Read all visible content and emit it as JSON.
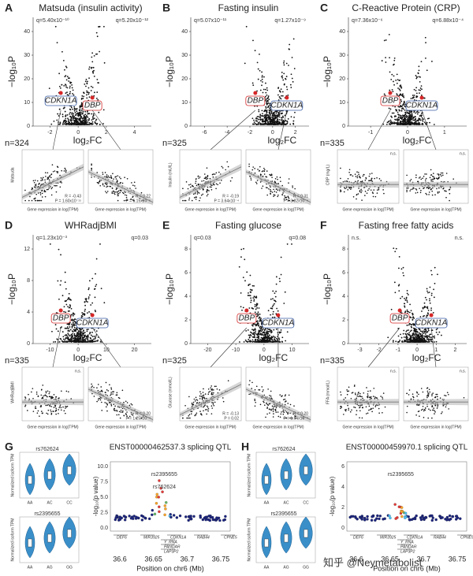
{
  "panels": [
    {
      "letter": "A",
      "title": "Matsuda (insulin activity)",
      "q_left": "q=5.40x10⁻¹⁰",
      "q_right": "q=5.20x10⁻¹²",
      "y_label": "−log₁₀P",
      "x_label": "log₂FC",
      "xticks": [
        -2,
        0,
        2,
        4
      ],
      "yticks": [
        0,
        10,
        20,
        30,
        40
      ],
      "genes": [
        "CDKN1A",
        "DBP"
      ],
      "n": "n=324",
      "trait_label": "Matsuda",
      "expr_label": "Gene expression in log(TPM)",
      "stats": [
        [
          "R = -0.43",
          "P = 1.60x10⁻¹⁵"
        ],
        [
          "R = 0.22",
          "P = 6.15x10⁻⁵"
        ]
      ]
    },
    {
      "letter": "B",
      "title": "Fasting insulin",
      "q_left": "q=5.07x10⁻¹¹",
      "q_right": "q=1.27x10⁻⁹",
      "y_label": "−log₁₀P",
      "x_label": "log₂FC",
      "xticks": [
        -6,
        -4,
        -2,
        0,
        2
      ],
      "yticks": [
        0,
        10,
        20,
        30,
        40
      ],
      "genes": [
        "DBP",
        "CDKN1A"
      ],
      "n": "n=325",
      "trait_label": "Insulin (mU/L)",
      "expr_label": "Gene expression in log(TPM)",
      "stats": [
        [
          "R = -0.19",
          "P = 3.64x10⁻⁴"
        ],
        [
          "R = 0.31",
          "P = 3.82x10⁻⁹"
        ]
      ]
    },
    {
      "letter": "C",
      "title": "C-Reactive Protein (CRP)",
      "q_left": "q=7.36x10⁻⁶",
      "q_right": "q=6.88x10⁻⁴",
      "y_label": "−log₁₀P",
      "x_label": "log₂FC",
      "xticks": [
        -1,
        0,
        1
      ],
      "yticks": [
        0,
        10,
        20,
        30,
        40
      ],
      "genes": [
        "DBP",
        "CDKN1A"
      ],
      "n": "n=335",
      "trait_label": "CRP (mg/L)",
      "expr_label": "Gene expression in log(TPM)",
      "stats": [
        [
          "n.s."
        ],
        [
          "n.s."
        ]
      ]
    },
    {
      "letter": "D",
      "title": "WHRadjBMI",
      "q_left": "q=1.23x10⁻³",
      "q_right": "q=0.03",
      "y_label": "−log₁₀P",
      "x_label": "log₂FC",
      "xticks": [
        -10,
        0,
        10,
        20
      ],
      "yticks": [
        0,
        4,
        8,
        12
      ],
      "genes": [
        "DBP",
        "CDKN1A"
      ],
      "n": "n=335",
      "trait_label": "WHRadjBMI",
      "expr_label": "Gene expression in log(TPM)",
      "stats": [
        [
          "n.s."
        ],
        [
          "R = 0.20",
          "P = 1.25x10⁻⁴"
        ]
      ]
    },
    {
      "letter": "E",
      "title": "Fasting glucose",
      "q_left": "q=0.03",
      "q_right": "q=0.08",
      "y_label": "−log₁₀P",
      "x_label": "log₂FC",
      "xticks": [
        -20,
        -10,
        0,
        10
      ],
      "yticks": [
        0,
        2,
        4,
        6,
        8
      ],
      "genes": [
        "DBP",
        "CDKN1A"
      ],
      "n": "n=325",
      "trait_label": "Glucose (mmol/L)",
      "expr_label": "Gene expression in log(TPM)",
      "stats": [
        [
          "R = -0.13",
          "P = 0.02"
        ],
        [
          "R = 0.20",
          "P = 1.64x10⁻⁴"
        ]
      ]
    },
    {
      "letter": "F",
      "title": "Fasting free fatty acids",
      "q_left": "n.s.",
      "q_right": "n.s.",
      "y_label": "−log₁₀P",
      "x_label": "log₂FC",
      "xticks": [
        -3,
        -2,
        -1,
        0,
        1,
        2
      ],
      "yticks": [
        0,
        2,
        4,
        6,
        8
      ],
      "genes": [
        "DBP",
        "CDKN1A"
      ],
      "n": "n=335",
      "trait_label": "FFA (mmol/L)",
      "expr_label": "Gene expression in log(TPM)",
      "stats": [
        [
          "n.s."
        ],
        [
          "n.s."
        ]
      ]
    }
  ],
  "qtl": [
    {
      "letter": "G",
      "snps": [
        {
          "name": "rs762624",
          "groups": [
            "AA",
            "AC",
            "CC"
          ]
        },
        {
          "name": "rs2395655",
          "groups": [
            "AA",
            "AG",
            "GG"
          ]
        }
      ],
      "violin_label": "Normalized isoform TPM",
      "title": "ENST00000462537.3 splicing QTL",
      "y_label": "-log₁₀(p value)",
      "yticks": [
        "0.0",
        "2.5",
        "5.0",
        "7.5",
        "10.0"
      ],
      "xticks": [
        "36.6",
        "36.65",
        "36.7",
        "36.75"
      ],
      "x_label": "Position on chr6 (Mb)",
      "snp_labels": [
        "rs2395655",
        "rs762624"
      ],
      "genes": [
        "DEF6",
        "MIR3925",
        "CDKN1A",
        "RAB44",
        "CPNE5",
        "Y_RNA",
        "PANDAR",
        "LAP3P2"
      ]
    },
    {
      "letter": "H",
      "snps": [
        {
          "name": "rs762624",
          "groups": [
            "AA",
            "AC",
            "CC"
          ]
        },
        {
          "name": "rs2395655",
          "groups": [
            "AA",
            "AG",
            "GG"
          ]
        }
      ],
      "violin_label": "Normalized isoform TPM",
      "title": "ENST00000459970.1 splicing QTL",
      "y_label": "-log₁₀(p value)",
      "yticks": [
        "0",
        "2",
        "4",
        "6"
      ],
      "xticks": [
        "36.6",
        "36.65",
        "36.7",
        "36.75"
      ],
      "x_label": "Position on chr6 (Mb)",
      "snp_labels": [
        "rs2395655"
      ],
      "genes": [
        "DEF6",
        "MIR3925",
        "CDKN1A",
        "RAB44",
        "CPNE5",
        "Y_RNA",
        "PANDAR",
        "LAP3P2"
      ]
    }
  ],
  "watermark": "知乎 @Neymetabolist"
}
